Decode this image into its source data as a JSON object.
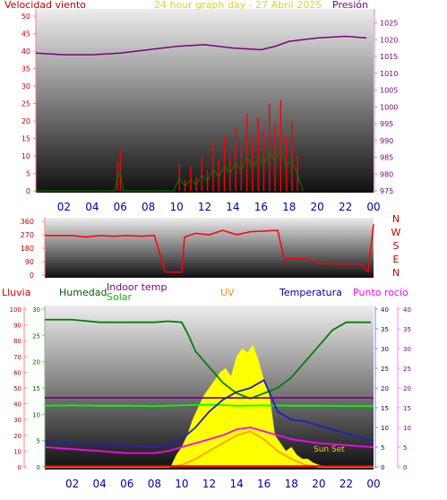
{
  "chart_data": [
    {
      "type": "line",
      "title": "24 hour graph day - 27 Abril 2025",
      "left_axis_label": "Velocidad viento",
      "right_axis_label": "Presión",
      "x_ticks": [
        "02",
        "04",
        "06",
        "08",
        "10",
        "12",
        "14",
        "16",
        "18",
        "20",
        "22",
        "00"
      ],
      "y_left_ticks": [
        "0",
        "5",
        "10",
        "15",
        "20",
        "25",
        "30",
        "35",
        "40",
        "45",
        "50"
      ],
      "y_left_range": [
        0,
        50
      ],
      "y_right_ticks": [
        "975",
        "980",
        "985",
        "990",
        "995",
        "1000",
        "1005",
        "1010",
        "1015",
        "1020",
        "1025"
      ],
      "y_right_range": [
        975,
        1027
      ],
      "colors": {
        "wind": "#ff0000",
        "gust_alt": "#0000c0",
        "gust_green": "#008000",
        "pressure": "#800080"
      },
      "series": [
        {
          "name": "Presión",
          "axis": "right",
          "x": [
            0,
            2,
            4,
            6,
            8,
            10,
            12,
            14,
            16,
            17,
            18,
            20,
            22,
            23.5
          ],
          "values": [
            1016,
            1015.5,
            1015.5,
            1016,
            1017,
            1018,
            1018.5,
            1017.5,
            1017,
            1018,
            1019.5,
            1020.5,
            1021,
            1020.5
          ]
        },
        {
          "axis": "left",
          "x": [
            0,
            5.6,
            5.8,
            6.0,
            6.2,
            9.8,
            10.2,
            10.6,
            11,
            11.4,
            11.8,
            12.2,
            12.6,
            13,
            13.4,
            13.8,
            14.2,
            14.6,
            15,
            15.4,
            15.8,
            16.2,
            16.6,
            17,
            17.4,
            17.8,
            18.2,
            18.6,
            19
          ],
          "values": [
            0,
            0,
            8,
            12,
            0,
            0,
            8,
            3,
            7,
            4,
            10,
            6,
            14,
            9,
            16,
            11,
            18,
            13,
            22,
            15,
            21,
            17,
            25,
            19,
            26,
            16,
            20,
            10,
            0
          ]
        }
      ]
    },
    {
      "type": "line",
      "title": "",
      "y_ticks": [
        "0",
        "90",
        "180",
        "270",
        "360"
      ],
      "y_range": [
        0,
        360
      ],
      "compass_labels": [
        "N",
        "W",
        "S",
        "E",
        "N"
      ],
      "series": [
        {
          "axis": "left",
          "x": [
            0,
            2,
            3,
            4,
            5,
            6,
            7,
            8,
            8.8,
            9,
            10,
            10.2,
            11,
            12,
            13,
            14,
            15,
            16,
            17,
            17.5,
            18,
            19,
            20,
            21,
            22,
            23,
            23.6,
            24
          ],
          "values": [
            265,
            265,
            255,
            265,
            260,
            265,
            260,
            265,
            20,
            20,
            20,
            255,
            280,
            270,
            300,
            270,
            290,
            295,
            300,
            100,
            110,
            110,
            80,
            75,
            75,
            75,
            25,
            340
          ]
        }
      ]
    },
    {
      "type": "line",
      "left_labels": [
        "Lluvia",
        "Humedad",
        "Indoor temp",
        "Solar"
      ],
      "center_labels": [
        "UV"
      ],
      "right_labels": [
        "Temperatura",
        "Punto rocío"
      ],
      "x_ticks": [
        "02",
        "04",
        "06",
        "08",
        "10",
        "12",
        "14",
        "16",
        "18",
        "20",
        "22",
        "00"
      ],
      "y_lluvia_ticks": [
        "0",
        "10",
        "20",
        "30",
        "40",
        "50",
        "60",
        "70",
        "80",
        "90",
        "100"
      ],
      "y_humidity_ticks": [
        "0",
        "5",
        "10",
        "15",
        "20",
        "25",
        "30"
      ],
      "y_temp_ticks": [
        "0",
        "5",
        "10",
        "15",
        "20",
        "25",
        "30",
        "35",
        "40"
      ],
      "annotation": "Sun Set",
      "series": [
        {
          "name": "Humedad",
          "color": "#008000",
          "x": [
            0,
            2,
            4,
            6,
            8,
            9,
            10,
            10.5,
            11,
            12,
            13,
            14,
            15,
            16,
            17,
            18,
            19,
            20,
            21,
            22,
            23,
            23.8
          ],
          "values": [
            28,
            28,
            27.5,
            27.5,
            27.5,
            27.7,
            27.5,
            25,
            22,
            19,
            16,
            14,
            13,
            14,
            15,
            17,
            20,
            23,
            26,
            27.5,
            27.5,
            27.5
          ]
        },
        {
          "name": "Indoor temp",
          "color": "#800080",
          "x": [
            0,
            24
          ],
          "values": [
            17.5,
            17.5
          ]
        },
        {
          "name": "Solar",
          "color": "#00ff00",
          "x": [
            0,
            2,
            4,
            6,
            8,
            10,
            12,
            14,
            16,
            18,
            20,
            22,
            24
          ],
          "values": [
            15.5,
            15.6,
            15.5,
            15.5,
            15.4,
            15.6,
            15.8,
            15.5,
            15.6,
            15.5,
            15.5,
            15.4,
            15.4
          ]
        },
        {
          "name": "Temperatura",
          "color": "#2020c0",
          "x": [
            0,
            2,
            4,
            6,
            8,
            9,
            10,
            11,
            12,
            13,
            14,
            15,
            16,
            16.5,
            17,
            18,
            19,
            20,
            21,
            22,
            23,
            24
          ],
          "values": [
            6.5,
            6,
            5.8,
            5.5,
            5,
            5.5,
            7,
            10,
            14,
            17,
            19,
            20,
            22,
            18,
            14,
            12,
            11.5,
            10.5,
            9.5,
            8.5,
            7.5,
            6.5
          ]
        },
        {
          "name": "Punto rocío",
          "color": "#ff00ff",
          "x": [
            0,
            2,
            4,
            6,
            8,
            9,
            10,
            11,
            12,
            13,
            14,
            15,
            16,
            17,
            18,
            20,
            22,
            24
          ],
          "values": [
            5,
            4.5,
            4,
            3.5,
            3.5,
            4,
            5,
            6,
            7,
            8,
            9.5,
            10,
            9,
            8,
            7,
            6,
            5.5,
            5
          ]
        },
        {
          "name": "UV",
          "color": "#ffa000",
          "x": [
            0,
            9,
            10,
            11,
            12,
            13,
            14,
            15,
            16,
            17,
            18,
            19,
            20,
            24
          ],
          "values": [
            0,
            0,
            0.5,
            2,
            4,
            6,
            8,
            9,
            7,
            4,
            2,
            0.5,
            0,
            0
          ]
        },
        {
          "name": "Lluvia",
          "color": "#ff0000",
          "x": [
            0,
            24
          ],
          "values": [
            0.5,
            0.5
          ]
        }
      ],
      "solar_fill_x": [
        0,
        9.2,
        9.6,
        10,
        10.4,
        10.8,
        11.2,
        11.6,
        12,
        12.4,
        12.8,
        13.2,
        13.6,
        14,
        14.4,
        14.8,
        15.2,
        15.6,
        16,
        16.4,
        16.8,
        17.2,
        17.6,
        18,
        18.4,
        18.8,
        19.2,
        19.6,
        20,
        20.5,
        24
      ],
      "solar_fill_values": [
        0,
        0,
        3,
        5,
        8,
        12,
        15,
        18,
        20,
        22,
        24,
        25,
        23,
        28,
        30,
        29,
        31,
        27,
        22,
        18,
        8,
        6,
        4,
        5,
        3,
        2,
        2,
        1,
        0.5,
        0,
        0
      ]
    }
  ]
}
